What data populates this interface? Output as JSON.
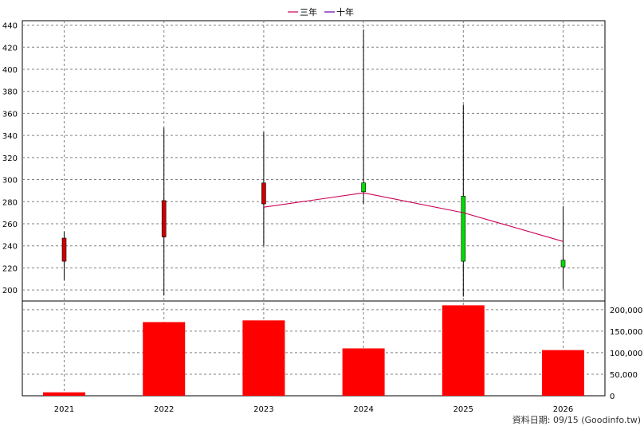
{
  "colors": {
    "up_candle": "#cc0000",
    "down_candle": "#00dd00",
    "wick": "#000000",
    "line_3yr": "#cc0055",
    "line_10yr": "#6600aa",
    "volume_bar": "#ff0000",
    "grid": "#808080"
  },
  "source_note": "資料日期: 09/15  (Goodinfo.tw)",
  "chart_data": [
    {
      "type": "candlestick",
      "categories": [
        "2021",
        "2022",
        "2023",
        "2024",
        "2025",
        "2026"
      ],
      "ylim": [
        190,
        444
      ],
      "yticks": [
        200,
        220,
        240,
        260,
        280,
        300,
        320,
        340,
        360,
        380,
        400,
        420,
        440
      ],
      "ohlc": [
        {
          "open": 226,
          "high": 253,
          "low": 209,
          "close": 247
        },
        {
          "open": 248,
          "high": 347,
          "low": 195,
          "close": 281
        },
        {
          "open": 278,
          "high": 343,
          "low": 240,
          "close": 297
        },
        {
          "open": 297,
          "high": 436,
          "low": 278,
          "close": 289
        },
        {
          "open": 285,
          "high": 368,
          "low": 194,
          "close": 226
        },
        {
          "open": 227,
          "high": 276,
          "low": 201,
          "close": 221
        }
      ],
      "legend": [
        {
          "name": "三年",
          "color": "#cc0055"
        },
        {
          "name": "十年",
          "color": "#6600aa"
        }
      ],
      "series": [
        {
          "name": "三年",
          "values": [
            null,
            null,
            275,
            288,
            270,
            244
          ]
        },
        {
          "name": "十年",
          "values": [
            null,
            null,
            null,
            null,
            null,
            null
          ]
        }
      ],
      "grid": true
    },
    {
      "type": "bar",
      "categories": [
        "2021",
        "2022",
        "2023",
        "2024",
        "2025",
        "2026"
      ],
      "values": [
        8000,
        171000,
        175000,
        110000,
        210000,
        106000
      ],
      "ylim": [
        0,
        220000
      ],
      "yticks": [
        0,
        50000,
        100000,
        150000,
        200000
      ],
      "ytick_labels": [
        "0",
        "50,000",
        "100,000",
        "150,000",
        "200,000"
      ],
      "grid": true
    }
  ]
}
